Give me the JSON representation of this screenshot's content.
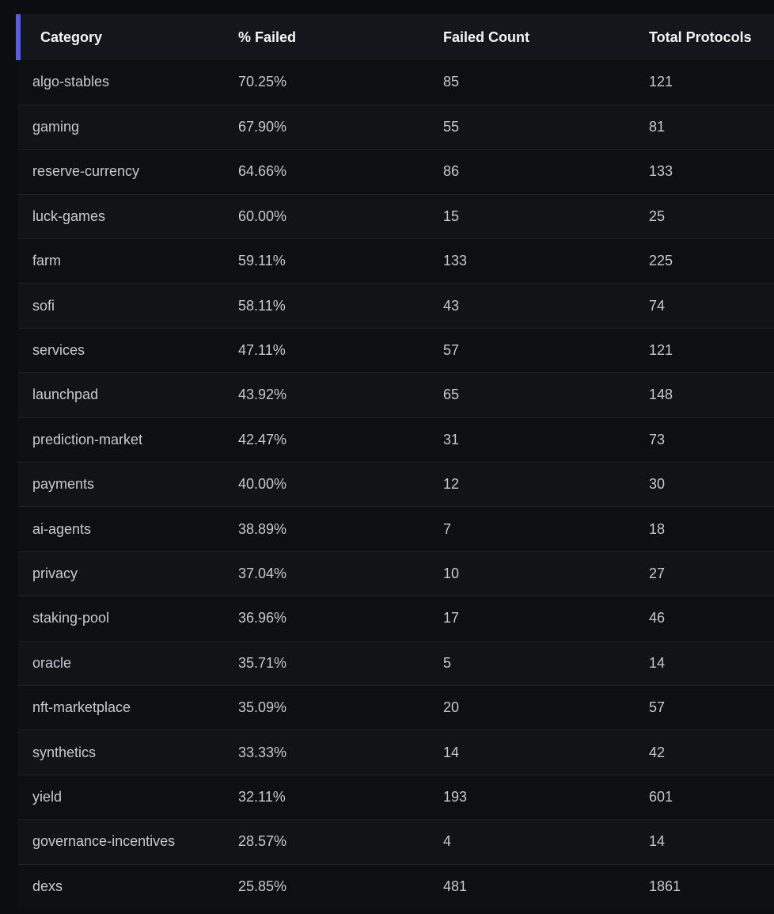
{
  "table": {
    "columns": [
      "Category",
      "% Failed",
      "Failed Count",
      "Total Protocols"
    ],
    "rows": [
      [
        "algo-stables",
        "70.25%",
        "85",
        "121"
      ],
      [
        "gaming",
        "67.90%",
        "55",
        "81"
      ],
      [
        "reserve-currency",
        "64.66%",
        "86",
        "133"
      ],
      [
        "luck-games",
        "60.00%",
        "15",
        "25"
      ],
      [
        "farm",
        "59.11%",
        "133",
        "225"
      ],
      [
        "sofi",
        "58.11%",
        "43",
        "74"
      ],
      [
        "services",
        "47.11%",
        "57",
        "121"
      ],
      [
        "launchpad",
        "43.92%",
        "65",
        "148"
      ],
      [
        "prediction-market",
        "42.47%",
        "31",
        "73"
      ],
      [
        "payments",
        "40.00%",
        "12",
        "30"
      ],
      [
        "ai-agents",
        "38.89%",
        "7",
        "18"
      ],
      [
        "privacy",
        "37.04%",
        "10",
        "27"
      ],
      [
        "staking-pool",
        "36.96%",
        "17",
        "46"
      ],
      [
        "oracle",
        "35.71%",
        "5",
        "14"
      ],
      [
        "nft-marketplace",
        "35.09%",
        "20",
        "57"
      ],
      [
        "synthetics",
        "33.33%",
        "14",
        "42"
      ],
      [
        "yield",
        "32.11%",
        "193",
        "601"
      ],
      [
        "governance-incentives",
        "28.57%",
        "4",
        "14"
      ],
      [
        "dexs",
        "25.85%",
        "481",
        "1861"
      ]
    ]
  },
  "colors": {
    "background": "#0a0e10",
    "header_background": "#13171b",
    "accent": "#5a5ce8",
    "header_text": "#f2f4f6",
    "cell_text": "#c4cad0"
  }
}
